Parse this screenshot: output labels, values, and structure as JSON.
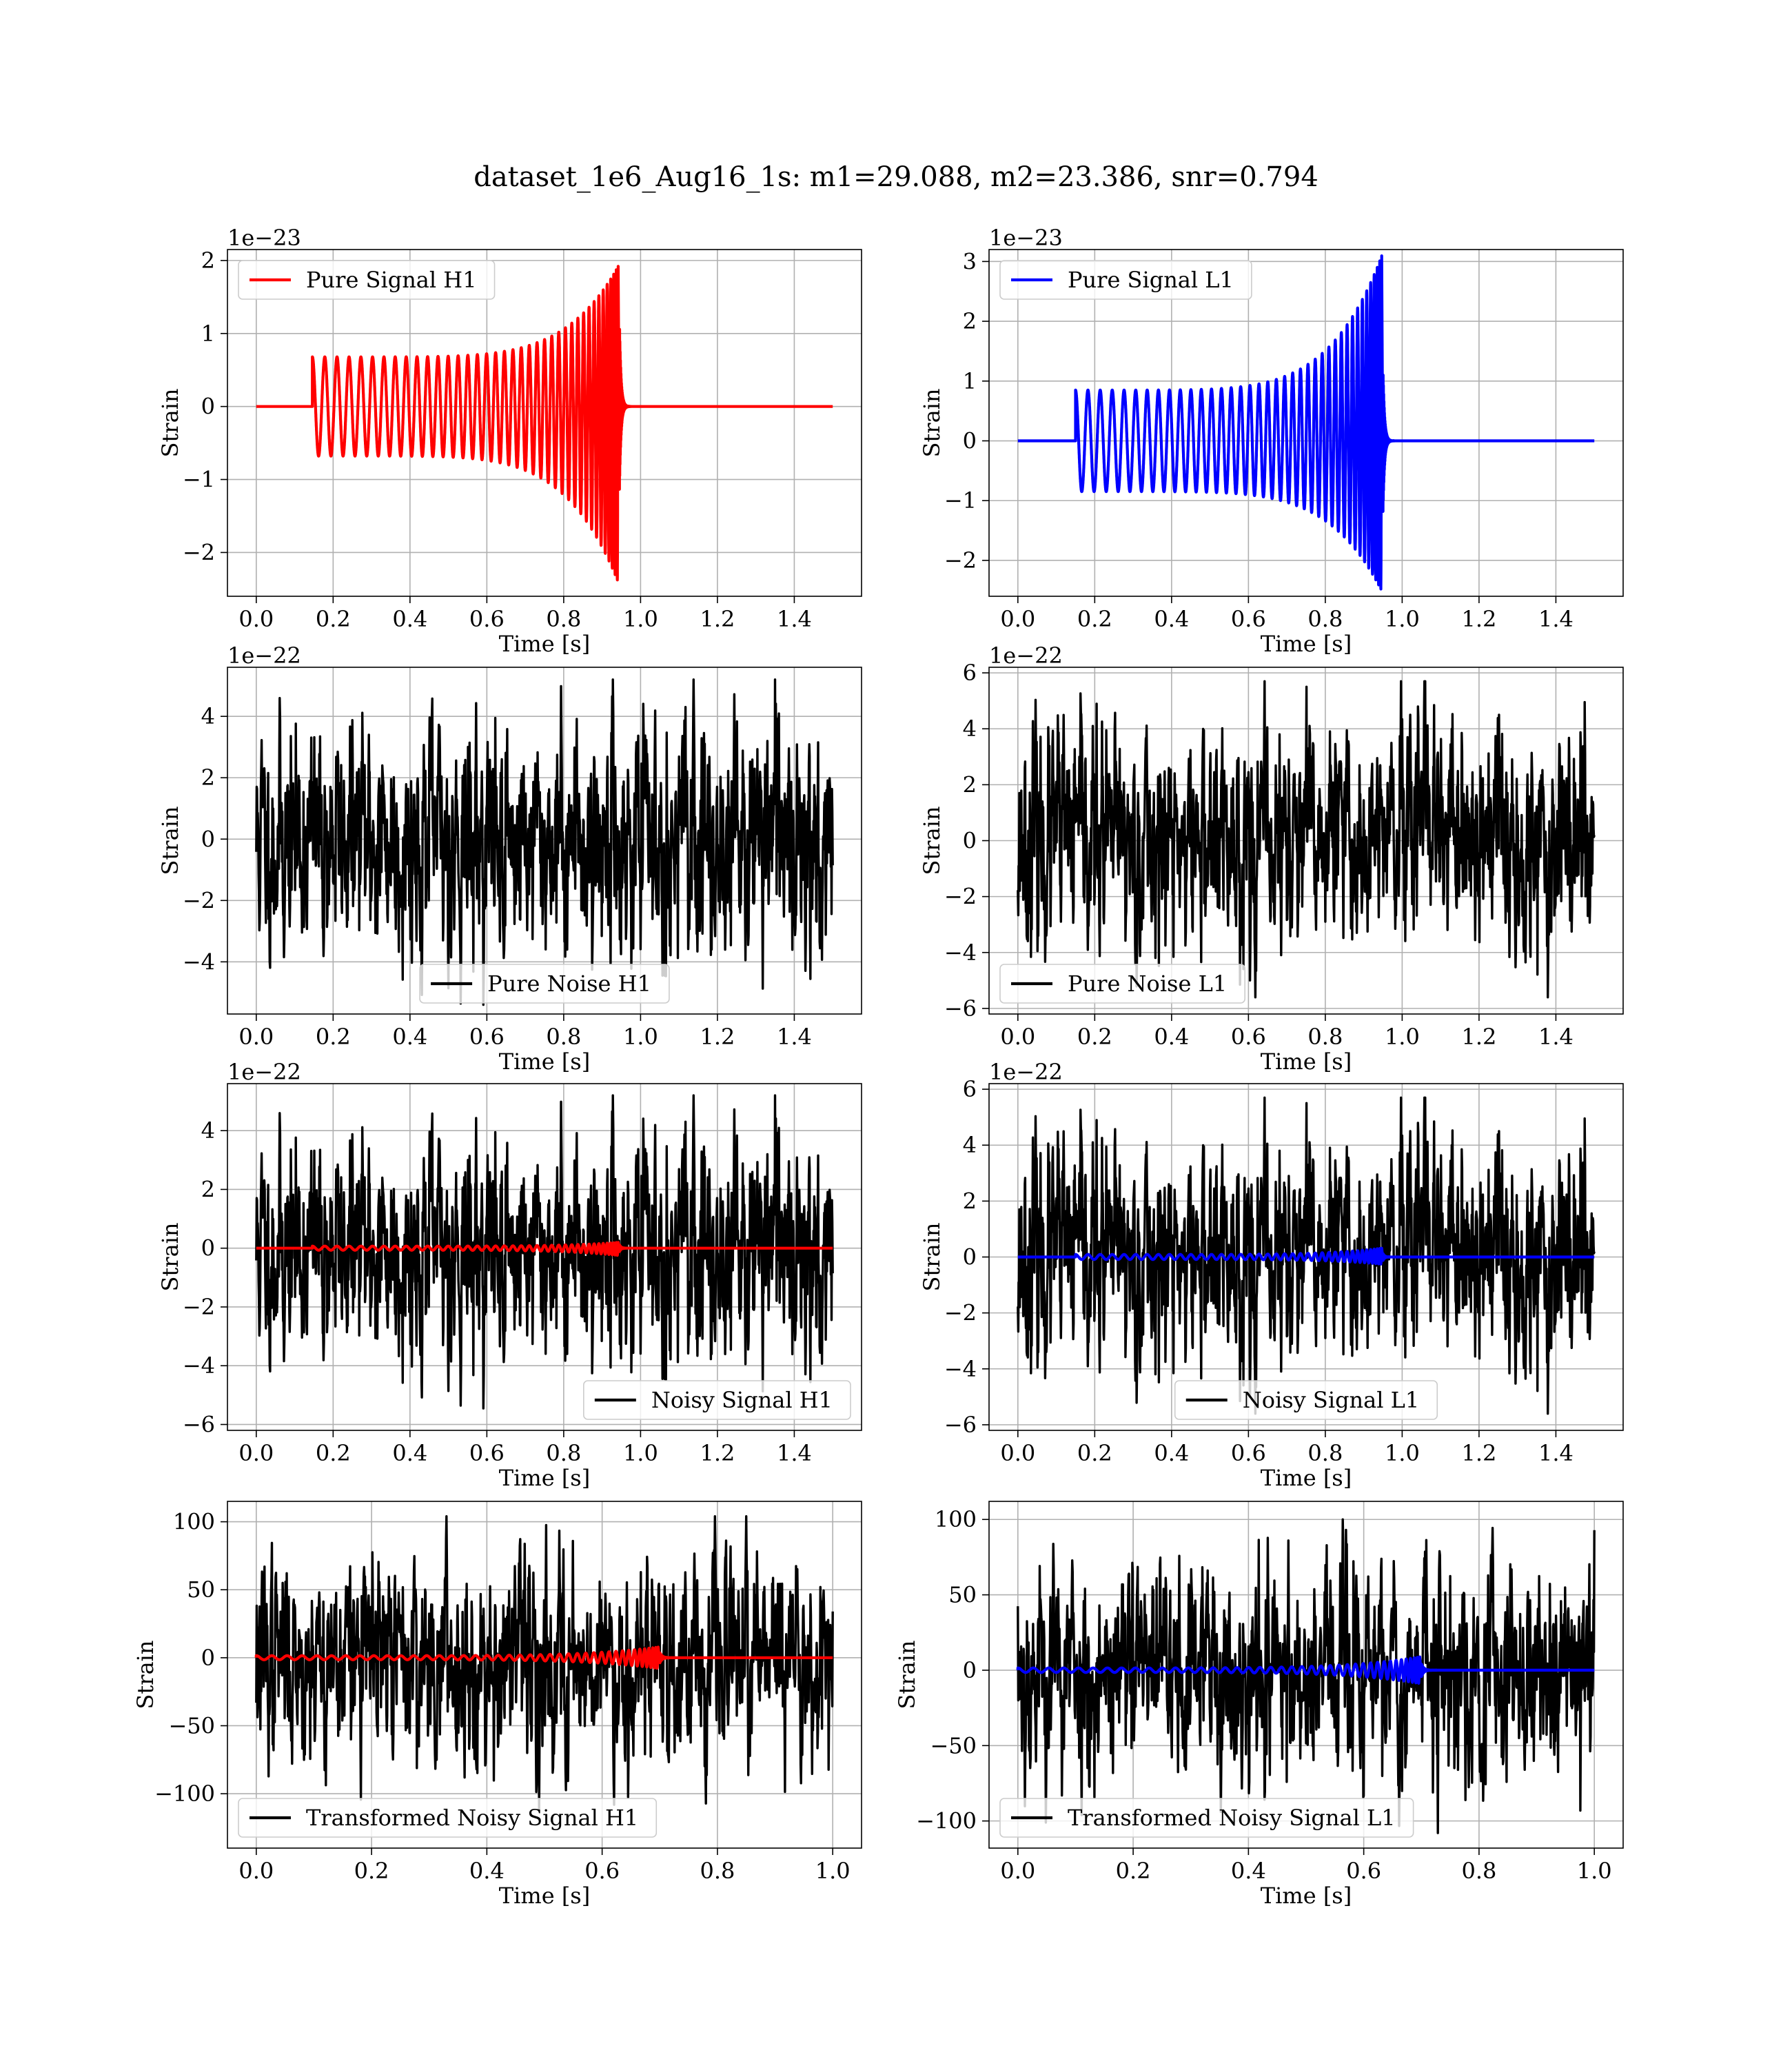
{
  "figure": {
    "title": "dataset_1e6_Aug16_1s: m1=29.088, m2=23.386, snr=0.794"
  },
  "chart_data": [
    {
      "id": "pure-signal-h1",
      "type": "line",
      "xlabel": "Time [s]",
      "ylabel": "Strain",
      "y_offset_label": "1e−23",
      "xlim": [
        -0.075,
        1.575
      ],
      "ylim": [
        -2.6,
        2.15
      ],
      "xticks": [
        0.0,
        0.2,
        0.4,
        0.6,
        0.8,
        1.0,
        1.2,
        1.4
      ],
      "xtick_labels": [
        "0.0",
        "0.2",
        "0.4",
        "0.6",
        "0.8",
        "1.0",
        "1.2",
        "1.4"
      ],
      "yticks": [
        2,
        1,
        0,
        -1,
        -2
      ],
      "ytick_labels": [
        "2",
        "1",
        "0",
        "−1",
        "−2"
      ],
      "grid": true,
      "legend_position": "upper-left",
      "series": [
        {
          "name": "Pure Signal H1",
          "kind": "chirp",
          "color": "#ff0000",
          "t_start": 0.146,
          "t_merge": 0.945,
          "t_end": 1.5,
          "amp_start": 0.68,
          "amp_peak_pos": 1.95,
          "amp_peak_neg": -2.45,
          "cycles": 38
        }
      ]
    },
    {
      "id": "pure-signal-l1",
      "type": "line",
      "xlabel": "Time [s]",
      "ylabel": "Strain",
      "y_offset_label": "1e−23",
      "xlim": [
        -0.075,
        1.575
      ],
      "ylim": [
        -2.6,
        3.2
      ],
      "xticks": [
        0.0,
        0.2,
        0.4,
        0.6,
        0.8,
        1.0,
        1.2,
        1.4
      ],
      "xtick_labels": [
        "0.0",
        "0.2",
        "0.4",
        "0.6",
        "0.8",
        "1.0",
        "1.2",
        "1.4"
      ],
      "yticks": [
        3,
        2,
        1,
        0,
        -1,
        -2
      ],
      "ytick_labels": [
        "3",
        "2",
        "1",
        "0",
        "−1",
        "−2"
      ],
      "grid": true,
      "legend_position": "upper-left",
      "series": [
        {
          "name": "Pure Signal L1",
          "kind": "chirp",
          "color": "#0000ff",
          "t_start": 0.15,
          "t_merge": 0.95,
          "t_end": 1.5,
          "amp_start": 0.85,
          "amp_peak_pos": 3.15,
          "amp_peak_neg": -2.55,
          "cycles": 38
        }
      ]
    },
    {
      "id": "pure-noise-h1",
      "type": "line",
      "xlabel": "Time [s]",
      "ylabel": "Strain",
      "y_offset_label": "1e−22",
      "xlim": [
        -0.075,
        1.575
      ],
      "ylim": [
        -5.7,
        5.6
      ],
      "xticks": [
        0.0,
        0.2,
        0.4,
        0.6,
        0.8,
        1.0,
        1.2,
        1.4
      ],
      "xtick_labels": [
        "0.0",
        "0.2",
        "0.4",
        "0.6",
        "0.8",
        "1.0",
        "1.2",
        "1.4"
      ],
      "yticks": [
        4,
        2,
        0,
        -2,
        -4
      ],
      "ytick_labels": [
        "4",
        "2",
        "0",
        "−2",
        "−4"
      ],
      "grid": true,
      "legend_position": "lower-center",
      "series": [
        {
          "name": "Pure Noise H1",
          "kind": "noise",
          "color": "#000000",
          "t_start": 0.0,
          "t_end": 1.5,
          "n": 1500,
          "sigma": 1.5,
          "max": 5.2,
          "min": -5.4,
          "seed": 11
        }
      ]
    },
    {
      "id": "pure-noise-l1",
      "type": "line",
      "xlabel": "Time [s]",
      "ylabel": "Strain",
      "y_offset_label": "1e−22",
      "xlim": [
        -0.075,
        1.575
      ],
      "ylim": [
        -6.2,
        6.2
      ],
      "xticks": [
        0.0,
        0.2,
        0.4,
        0.6,
        0.8,
        1.0,
        1.2,
        1.4
      ],
      "xtick_labels": [
        "0.0",
        "0.2",
        "0.4",
        "0.6",
        "0.8",
        "1.0",
        "1.2",
        "1.4"
      ],
      "yticks": [
        6,
        4,
        2,
        0,
        -2,
        -4,
        -6
      ],
      "ytick_labels": [
        "6",
        "4",
        "2",
        "0",
        "−2",
        "−4",
        "−6"
      ],
      "grid": true,
      "legend_position": "lower-left",
      "series": [
        {
          "name": "Pure Noise L1",
          "kind": "noise",
          "color": "#000000",
          "t_start": 0.0,
          "t_end": 1.5,
          "n": 1500,
          "sigma": 1.6,
          "max": 5.7,
          "min": -5.6,
          "seed": 23
        }
      ]
    },
    {
      "id": "noisy-signal-h1",
      "type": "line",
      "xlabel": "Time [s]",
      "ylabel": "Strain",
      "y_offset_label": "1e−22",
      "xlim": [
        -0.075,
        1.575
      ],
      "ylim": [
        -6.2,
        5.6
      ],
      "xticks": [
        0.0,
        0.2,
        0.4,
        0.6,
        0.8,
        1.0,
        1.2,
        1.4
      ],
      "xtick_labels": [
        "0.0",
        "0.2",
        "0.4",
        "0.6",
        "0.8",
        "1.0",
        "1.2",
        "1.4"
      ],
      "yticks": [
        4,
        2,
        0,
        -2,
        -4,
        -6
      ],
      "ytick_labels": [
        "4",
        "2",
        "0",
        "−2",
        "−4",
        "−6"
      ],
      "grid": true,
      "legend_position": "lower-right",
      "series": [
        {
          "name": "Noisy Signal H1",
          "kind": "noise",
          "color": "#000000",
          "t_start": 0.0,
          "t_end": 1.5,
          "n": 1500,
          "sigma": 1.5,
          "max": 5.2,
          "min": -5.7,
          "seed": 11
        },
        {
          "name": "",
          "kind": "chirp",
          "color": "#ff0000",
          "t_start": 0.146,
          "t_merge": 0.945,
          "t_end": 1.5,
          "amp_start": 0.07,
          "amp_peak_pos": 0.2,
          "amp_peak_neg": -0.25,
          "cycles": 38
        }
      ]
    },
    {
      "id": "noisy-signal-l1",
      "type": "line",
      "xlabel": "Time [s]",
      "ylabel": "Strain",
      "y_offset_label": "1e−22",
      "xlim": [
        -0.075,
        1.575
      ],
      "ylim": [
        -6.2,
        6.2
      ],
      "xticks": [
        0.0,
        0.2,
        0.4,
        0.6,
        0.8,
        1.0,
        1.2,
        1.4
      ],
      "xtick_labels": [
        "0.0",
        "0.2",
        "0.4",
        "0.6",
        "0.8",
        "1.0",
        "1.2",
        "1.4"
      ],
      "yticks": [
        6,
        4,
        2,
        0,
        -2,
        -4,
        -6
      ],
      "ytick_labels": [
        "6",
        "4",
        "2",
        "0",
        "−2",
        "−4",
        "−6"
      ],
      "grid": true,
      "legend_position": "lower-center",
      "series": [
        {
          "name": "Noisy Signal L1",
          "kind": "noise",
          "color": "#000000",
          "t_start": 0.0,
          "t_end": 1.5,
          "n": 1500,
          "sigma": 1.6,
          "max": 5.7,
          "min": -5.6,
          "seed": 23
        },
        {
          "name": "",
          "kind": "chirp",
          "color": "#0000ff",
          "t_start": 0.15,
          "t_merge": 0.95,
          "t_end": 1.5,
          "amp_start": 0.09,
          "amp_peak_pos": 0.32,
          "amp_peak_neg": -0.26,
          "cycles": 38
        }
      ]
    },
    {
      "id": "transformed-noisy-signal-h1",
      "type": "line",
      "xlabel": "Time [s]",
      "ylabel": "Strain",
      "y_offset_label": "",
      "xlim": [
        -0.05,
        1.05
      ],
      "ylim": [
        -140,
        115
      ],
      "xticks": [
        0.0,
        0.2,
        0.4,
        0.6,
        0.8,
        1.0
      ],
      "xtick_labels": [
        "0.0",
        "0.2",
        "0.4",
        "0.6",
        "0.8",
        "1.0"
      ],
      "yticks": [
        100,
        50,
        0,
        -50,
        -100
      ],
      "ytick_labels": [
        "100",
        "50",
        "0",
        "−50",
        "−100"
      ],
      "grid": true,
      "legend_position": "lower-left",
      "series": [
        {
          "name": "Transformed Noisy Signal H1",
          "kind": "noise",
          "color": "#000000",
          "t_start": 0.0,
          "t_end": 1.0,
          "n": 1400,
          "sigma": 30,
          "max": 104,
          "min": -128,
          "seed": 37
        },
        {
          "name": "",
          "kind": "chirp",
          "color": "#ff0000",
          "t_start": 0.0,
          "t_merge": 0.7,
          "t_end": 1.0,
          "amp_start": 1.5,
          "amp_peak_pos": 8,
          "amp_peak_neg": -8,
          "cycles": 40
        }
      ]
    },
    {
      "id": "transformed-noisy-signal-l1",
      "type": "line",
      "xlabel": "Time [s]",
      "ylabel": "Strain",
      "y_offset_label": "",
      "xlim": [
        -0.05,
        1.05
      ],
      "ylim": [
        -118,
        112
      ],
      "xticks": [
        0.0,
        0.2,
        0.4,
        0.6,
        0.8,
        1.0
      ],
      "xtick_labels": [
        "0.0",
        "0.2",
        "0.4",
        "0.6",
        "0.8",
        "1.0"
      ],
      "yticks": [
        100,
        50,
        0,
        -50,
        -100
      ],
      "ytick_labels": [
        "100",
        "50",
        "0",
        "−50",
        "−100"
      ],
      "grid": true,
      "legend_position": "lower-left",
      "series": [
        {
          "name": "Transformed Noisy Signal L1",
          "kind": "noise",
          "color": "#000000",
          "t_start": 0.0,
          "t_end": 1.0,
          "n": 1400,
          "sigma": 30,
          "max": 100,
          "min": -108,
          "seed": 53
        },
        {
          "name": "",
          "kind": "chirp",
          "color": "#0000ff",
          "t_start": 0.0,
          "t_merge": 0.7,
          "t_end": 1.0,
          "amp_start": 1.5,
          "amp_peak_pos": 9,
          "amp_peak_neg": -9,
          "cycles": 40
        }
      ]
    }
  ]
}
